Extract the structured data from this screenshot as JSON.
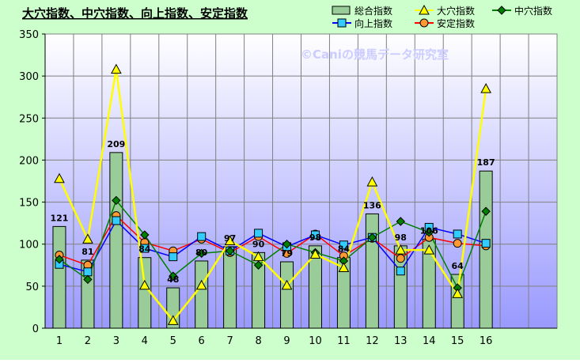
{
  "colors": {
    "background": "#ccffcc",
    "plot_top": "#ffffff",
    "plot_bottom": "#9999ff",
    "bar_fill": "#99cc99",
    "bar_stroke": "#000000",
    "oana": "#ffff00",
    "nakaana": "#008000",
    "kojo": "#0000ff",
    "antei": "#ff0000",
    "watermark": "#ccccff"
  },
  "chart_data": {
    "type": "bar",
    "title": "大穴指数、中穴指数、向上指数、安定指数",
    "watermark": "©Caniの競馬データ研究室",
    "categories": [
      "1",
      "2",
      "3",
      "4",
      "5",
      "6",
      "7",
      "8",
      "9",
      "10",
      "11",
      "12",
      "13",
      "14",
      "15",
      "16"
    ],
    "slots": 18,
    "ylim": [
      0,
      350
    ],
    "yticks": [
      "0",
      "50",
      "100",
      "150",
      "200",
      "250",
      "300",
      "350"
    ],
    "grid": true,
    "legend_position": "top-right",
    "series": [
      {
        "name": "総合指数",
        "type": "bar",
        "color": "#99cc99",
        "marker": "bar",
        "values": [
          121,
          81,
          209,
          84,
          48,
          80,
          97,
          90,
          79,
          98,
          84,
          136,
          98,
          106,
          64,
          187
        ],
        "labels": [
          "121",
          "81",
          "209",
          "84",
          "48",
          "80",
          "97",
          "90",
          "79",
          "98",
          "84",
          "136",
          "98",
          "106",
          "64",
          "187"
        ]
      },
      {
        "name": "大穴指数",
        "type": "line",
        "color": "#ffff00",
        "marker": "triangle",
        "values": [
          178,
          106,
          308,
          51,
          9,
          51,
          104,
          85,
          51,
          88,
          72,
          174,
          93,
          93,
          41,
          285
        ]
      },
      {
        "name": "中穴指数",
        "type": "line",
        "color": "#008000",
        "marker": "diamond",
        "values": [
          82,
          58,
          152,
          111,
          62,
          89,
          92,
          75,
          100,
          90,
          80,
          108,
          127,
          114,
          48,
          139
        ]
      },
      {
        "name": "向上指数",
        "type": "line",
        "color": "#0000ff",
        "marker": "square",
        "values": [
          76,
          67,
          128,
          95,
          85,
          109,
          92,
          113,
          97,
          111,
          99,
          108,
          68,
          120,
          112,
          101
        ]
      },
      {
        "name": "安定指数",
        "type": "line",
        "color": "#ff0000",
        "marker": "circle",
        "values": [
          87,
          75,
          134,
          102,
          92,
          106,
          90,
          109,
          89,
          112,
          86,
          107,
          83,
          108,
          101,
          98
        ]
      }
    ]
  }
}
